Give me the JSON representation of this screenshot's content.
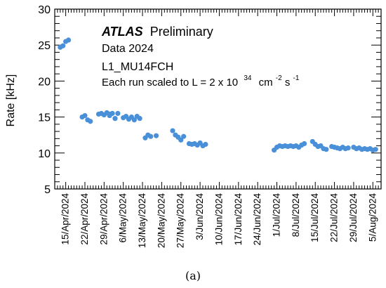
{
  "chart_data": {
    "type": "scatter",
    "title": "",
    "xlabel": "",
    "ylabel": "Rate [kHz]",
    "ylim": [
      5,
      30
    ],
    "yticks": [
      "5",
      "10",
      "15",
      "20",
      "25",
      "30"
    ],
    "xlim": [
      "2024-04-11",
      "2024-08-08"
    ],
    "xtick_labels": [
      {
        "label": "15/Apr/2024",
        "date": "2024-04-15"
      },
      {
        "label": "22/Apr/2024",
        "date": "2024-04-22"
      },
      {
        "label": "29/Apr/2024",
        "date": "2024-04-29"
      },
      {
        "label": "6/May/2024",
        "date": "2024-05-06"
      },
      {
        "label": "13/May/2024",
        "date": "2024-05-13"
      },
      {
        "label": "20/May/2024",
        "date": "2024-05-20"
      },
      {
        "label": "27/May/2024",
        "date": "2024-05-27"
      },
      {
        "label": "3/Jun/2024",
        "date": "2024-06-03"
      },
      {
        "label": "10/Jun/2024",
        "date": "2024-06-10"
      },
      {
        "label": "17/Jun/2024",
        "date": "2024-06-17"
      },
      {
        "label": "24/Jun/2024",
        "date": "2024-06-24"
      },
      {
        "label": "1/Jul/2024",
        "date": "2024-07-01"
      },
      {
        "label": "8/Jul/2024",
        "date": "2024-07-08"
      },
      {
        "label": "15/Jul/2024",
        "date": "2024-07-15"
      },
      {
        "label": "22/Jul/2024",
        "date": "2024-07-22"
      },
      {
        "label": "29/Jul/2024",
        "date": "2024-07-29"
      },
      {
        "label": "5/Aug/2024",
        "date": "2024-08-05"
      }
    ],
    "annotations": {
      "experiment": "ATLAS",
      "status": "Preliminary",
      "dataset": "Data 2024",
      "trigger": "L1_MU14FCH",
      "scaling_prefix": "Each run scaled to L = 2 x 10",
      "scaling_exponent": "34",
      "scaling_unit_cm": "cm",
      "scaling_unit_cm_exp": "-2",
      "scaling_unit_s": "s",
      "scaling_unit_s_exp": "-1"
    },
    "marker_color": "#4a90d9",
    "grid": false,
    "series": [
      {
        "points": [
          [
            "2024-04-13",
            24.7
          ],
          [
            "2024-04-14",
            24.9
          ],
          [
            "2024-04-15",
            25.5
          ],
          [
            "2024-04-16",
            25.7
          ],
          [
            "2024-04-21",
            15.0
          ],
          [
            "2024-04-22",
            15.2
          ],
          [
            "2024-04-23",
            14.6
          ],
          [
            "2024-04-24",
            14.4
          ],
          [
            "2024-04-27",
            15.4
          ],
          [
            "2024-04-28",
            15.5
          ],
          [
            "2024-04-29",
            15.3
          ],
          [
            "2024-04-30",
            15.6
          ],
          [
            "2024-05-01",
            15.2
          ],
          [
            "2024-05-01",
            15.4
          ],
          [
            "2024-05-02",
            15.5
          ],
          [
            "2024-05-03",
            14.8
          ],
          [
            "2024-05-04",
            15.5
          ],
          [
            "2024-05-06",
            14.9
          ],
          [
            "2024-05-07",
            15.1
          ],
          [
            "2024-05-08",
            14.7
          ],
          [
            "2024-05-09",
            15.0
          ],
          [
            "2024-05-10",
            14.6
          ],
          [
            "2024-05-11",
            15.1
          ],
          [
            "2024-05-12",
            14.8
          ],
          [
            "2024-05-14",
            12.1
          ],
          [
            "2024-05-15",
            12.5
          ],
          [
            "2024-05-16",
            12.3
          ],
          [
            "2024-05-18",
            12.4
          ],
          [
            "2024-05-24",
            13.1
          ],
          [
            "2024-05-25",
            12.5
          ],
          [
            "2024-05-26",
            12.2
          ],
          [
            "2024-05-27",
            11.8
          ],
          [
            "2024-05-28",
            12.3
          ],
          [
            "2024-05-30",
            11.3
          ],
          [
            "2024-05-31",
            11.2
          ],
          [
            "2024-06-01",
            11.3
          ],
          [
            "2024-06-02",
            11.1
          ],
          [
            "2024-06-03",
            11.4
          ],
          [
            "2024-06-04",
            11.0
          ],
          [
            "2024-06-05",
            11.2
          ],
          [
            "2024-06-30",
            10.4
          ],
          [
            "2024-07-01",
            10.8
          ],
          [
            "2024-07-02",
            11.0
          ],
          [
            "2024-07-03",
            10.9
          ],
          [
            "2024-07-04",
            11.0
          ],
          [
            "2024-07-05",
            10.9
          ],
          [
            "2024-07-06",
            11.0
          ],
          [
            "2024-07-07",
            10.9
          ],
          [
            "2024-07-08",
            11.0
          ],
          [
            "2024-07-09",
            10.8
          ],
          [
            "2024-07-10",
            11.1
          ],
          [
            "2024-07-11",
            11.3
          ],
          [
            "2024-07-14",
            11.6
          ],
          [
            "2024-07-15",
            11.2
          ],
          [
            "2024-07-16",
            10.9
          ],
          [
            "2024-07-17",
            11.0
          ],
          [
            "2024-07-18",
            10.6
          ],
          [
            "2024-07-19",
            10.5
          ],
          [
            "2024-07-21",
            10.9
          ],
          [
            "2024-07-22",
            10.8
          ],
          [
            "2024-07-23",
            10.7
          ],
          [
            "2024-07-24",
            10.6
          ],
          [
            "2024-07-25",
            10.8
          ],
          [
            "2024-07-26",
            10.6
          ],
          [
            "2024-07-27",
            10.7
          ],
          [
            "2024-07-29",
            10.8
          ],
          [
            "2024-07-30",
            10.6
          ],
          [
            "2024-07-31",
            10.7
          ],
          [
            "2024-08-01",
            10.5
          ],
          [
            "2024-08-02",
            10.6
          ],
          [
            "2024-08-03",
            10.5
          ],
          [
            "2024-08-04",
            10.6
          ],
          [
            "2024-08-05",
            10.4
          ],
          [
            "2024-08-06",
            10.5
          ]
        ]
      }
    ]
  },
  "caption": "(a)"
}
